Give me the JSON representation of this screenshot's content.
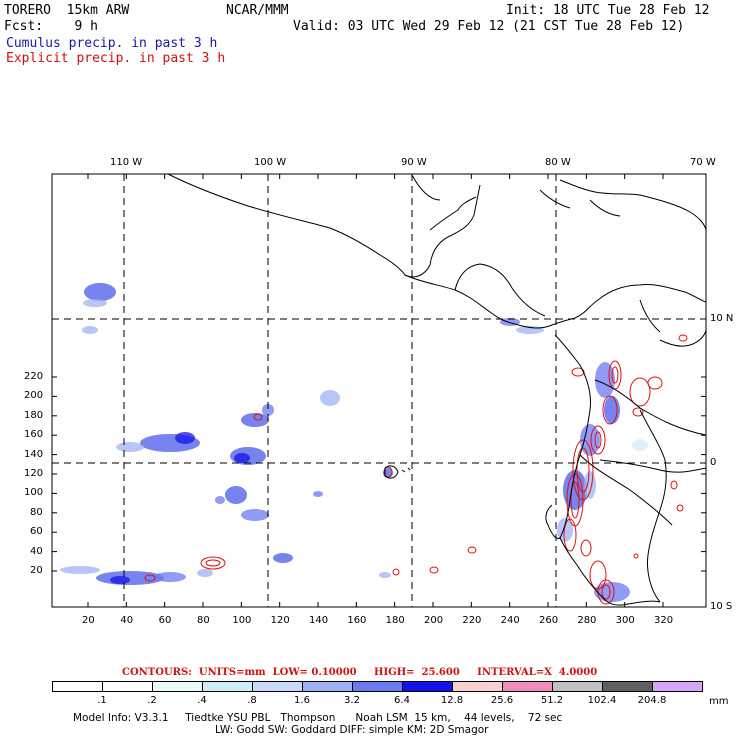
{
  "header": {
    "model": "TORERO  15km ARW",
    "org": "NCAR/MMM",
    "init": "Init: 18 UTC Tue 28 Feb 12",
    "fcst": "Fcst:    9 h",
    "valid": "Valid: 03 UTC Wed 29 Feb 12 (21 CST Tue 28 Feb 12)",
    "legend_cumulus": "Cumulus precip. in past 3 h",
    "legend_explicit": "Explicit precip. in past 3 h"
  },
  "map": {
    "lon_labels": [
      "110 W",
      "100 W",
      "90 W",
      "80 W",
      "70 W"
    ],
    "lat_labels": [
      "10 N",
      "0",
      "10 S"
    ],
    "y_ticks": [
      "20",
      "40",
      "60",
      "80",
      "100",
      "120",
      "140",
      "160",
      "180",
      "200",
      "220"
    ],
    "x_ticks": [
      "20",
      "40",
      "60",
      "80",
      "100",
      "120",
      "140",
      "160",
      "180",
      "200",
      "220",
      "240",
      "260",
      "280",
      "300",
      "320"
    ]
  },
  "colorbar": {
    "contours_text": "CONTOURS:  UNITS=mm  LOW= 0.10000     HIGH=  25.600     INTERVAL=X  4.0000",
    "labels": [
      ".1",
      ".2",
      ".4",
      ".8",
      "1.6",
      "3.2",
      "6.4",
      "12.8",
      "25.6",
      "51.2",
      "102.4",
      "204.8"
    ],
    "unit": "mm",
    "colors": [
      "#ffffff",
      "#ffffff",
      "#e8fafa",
      "#d0eefa",
      "#c8dcf8",
      "#9fb2f4",
      "#6a7af0",
      "#1414ea",
      "#f8d0d0",
      "#f08cbc",
      "#c0c0c0",
      "#606060",
      "#d7a6f6"
    ]
  },
  "footer": {
    "line1": "Model Info: V3.3.1     Tiedtke YSU PBL   Thompson      Noah LSM  15 km,    44 levels,    72 sec",
    "line2": "LW: Godd SW: Goddard DIFF: simple KM: 2D Smagor"
  }
}
